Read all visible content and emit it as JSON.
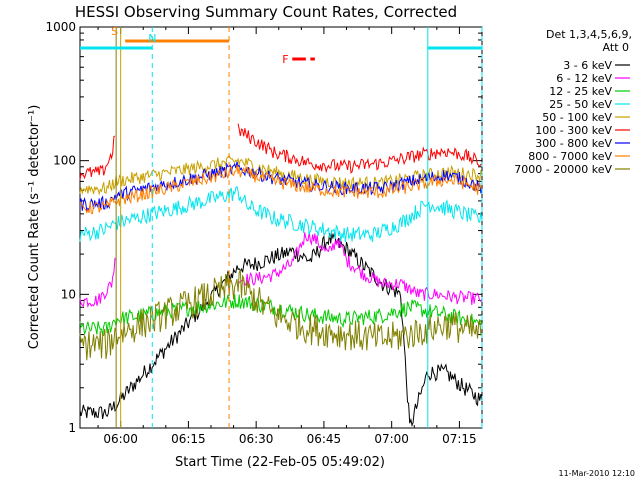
{
  "chart_data": {
    "type": "line",
    "title": "HESSI Observing Summary Count Rates, Corrected",
    "xlabel": "Start Time (22-Feb-05 05:49:02)",
    "ylabel": "Corrected Count Rate (s⁻¹ detector⁻¹)",
    "yscale": "log",
    "ylim": [
      1,
      1000
    ],
    "xlim_minutes": [
      -9,
      80
    ],
    "x_ticks": [
      "06:00",
      "06:15",
      "06:30",
      "06:45",
      "07:00",
      "07:15"
    ],
    "x_tick_minutes": [
      0,
      15,
      30,
      45,
      60,
      75
    ],
    "y_ticks": [
      "1",
      "10",
      "100",
      "1000"
    ],
    "y_tick_values": [
      1,
      10,
      100,
      1000
    ],
    "legend_header": [
      "Det 1,3,4,5,6,9,",
      "Att 0"
    ],
    "flags": [
      {
        "label": "S",
        "color": "#ff8000",
        "start": 1,
        "end": 24
      },
      {
        "label": "N",
        "color": "#00e5ee",
        "start": -9,
        "end": 7
      },
      {
        "label": "N",
        "color": "#00e5ee",
        "start": 68,
        "end": 80
      },
      {
        "label": "F",
        "color": "#ff0000",
        "start": 38,
        "end": 43
      }
    ],
    "markers": [
      {
        "minute": 0,
        "color": "#c8a000",
        "style": "solid"
      },
      {
        "minute": -1,
        "color": "#808000",
        "style": "solid"
      },
      {
        "minute": 7,
        "color": "#00e5ee",
        "style": "dashed"
      },
      {
        "minute": 24,
        "color": "#ff8000",
        "style": "dashed"
      },
      {
        "minute": 68,
        "color": "#00e5ee",
        "style": "solid"
      },
      {
        "minute": 80,
        "color": "#00e5ee",
        "style": "dashed"
      }
    ],
    "series": [
      {
        "name": "3 - 6 keV",
        "color": "#000000",
        "x": [
          -9,
          -3,
          -1,
          26,
          30,
          34,
          38,
          42,
          46,
          50,
          54,
          58,
          62,
          64,
          68,
          72,
          76,
          80
        ],
        "values": [
          1.3,
          1.3,
          1.5,
          16,
          17,
          19,
          21,
          18,
          26,
          22,
          16,
          12,
          10,
          1.0,
          2.6,
          2.6,
          2.0,
          1.6
        ]
      },
      {
        "name": "6 - 12 keV",
        "color": "#ff00ff",
        "x": [
          -9,
          -5,
          -2,
          -1,
          0,
          26,
          30,
          34,
          38,
          41,
          43,
          46,
          48,
          50,
          54,
          58,
          62,
          66,
          70,
          74,
          78,
          80
        ],
        "values": [
          9,
          9,
          12,
          20,
          0,
          13,
          13,
          14,
          17,
          28,
          26,
          20,
          26,
          18,
          14,
          12,
          12,
          10,
          10,
          9.5,
          9.3,
          9.3
        ]
      },
      {
        "name": "12 - 25 keV",
        "color": "#00cc00",
        "x": [
          -9,
          -3,
          -1,
          26,
          34,
          42,
          50,
          58,
          64,
          68,
          72,
          76,
          80
        ],
        "values": [
          5.5,
          5.5,
          6.5,
          9,
          8,
          7,
          6.5,
          7,
          8,
          7.5,
          7,
          6.5,
          6
        ]
      },
      {
        "name": "25 - 50 keV",
        "color": "#00e5ee",
        "x": [
          -9,
          -4,
          -1,
          26,
          28,
          34,
          42,
          50,
          56,
          62,
          68,
          72,
          76,
          80
        ],
        "values": [
          28,
          30,
          34,
          58,
          46,
          37,
          32,
          28,
          28,
          34,
          48,
          44,
          40,
          36
        ]
      },
      {
        "name": "50 - 100 keV",
        "color": "#c8a000",
        "x": [
          -9,
          -3,
          -1,
          26,
          34,
          42,
          50,
          58,
          66,
          72,
          76,
          80
        ],
        "values": [
          62,
          62,
          70,
          100,
          82,
          72,
          68,
          68,
          76,
          82,
          80,
          78
        ]
      },
      {
        "name": "100 - 300 keV",
        "color": "#ff0000",
        "x": [
          -9,
          -4,
          -2,
          -1,
          0,
          26,
          34,
          42,
          50,
          58,
          66,
          72,
          76,
          80
        ],
        "values": [
          80,
          82,
          110,
          180,
          0,
          170,
          115,
          95,
          90,
          96,
          110,
          118,
          110,
          95
        ]
      },
      {
        "name": "300 - 800 keV",
        "color": "#0000ff",
        "x": [
          -9,
          -3,
          -1,
          26,
          34,
          42,
          50,
          58,
          66,
          72,
          76,
          80
        ],
        "values": [
          47,
          48,
          55,
          88,
          74,
          66,
          62,
          62,
          72,
          78,
          72,
          62
        ]
      },
      {
        "name": "800 - 7000 keV",
        "color": "#ff8000",
        "x": [
          -9,
          -3,
          -1,
          26,
          34,
          42,
          50,
          58,
          66,
          72,
          76,
          80
        ],
        "values": [
          44,
          45,
          50,
          84,
          70,
          62,
          58,
          58,
          66,
          72,
          68,
          60
        ]
      },
      {
        "name": "7000 - 20000 keV",
        "color": "#808000",
        "x": [
          -9,
          -3,
          -1,
          26,
          34,
          42,
          50,
          58,
          64,
          68,
          72,
          76,
          80
        ],
        "values": [
          4.2,
          4.2,
          5,
          12,
          7,
          5.5,
          5,
          4.6,
          5,
          5.5,
          6,
          5.5,
          5
        ]
      }
    ]
  },
  "footer": {
    "timestamp": "11-Mar-2010 12:10"
  }
}
